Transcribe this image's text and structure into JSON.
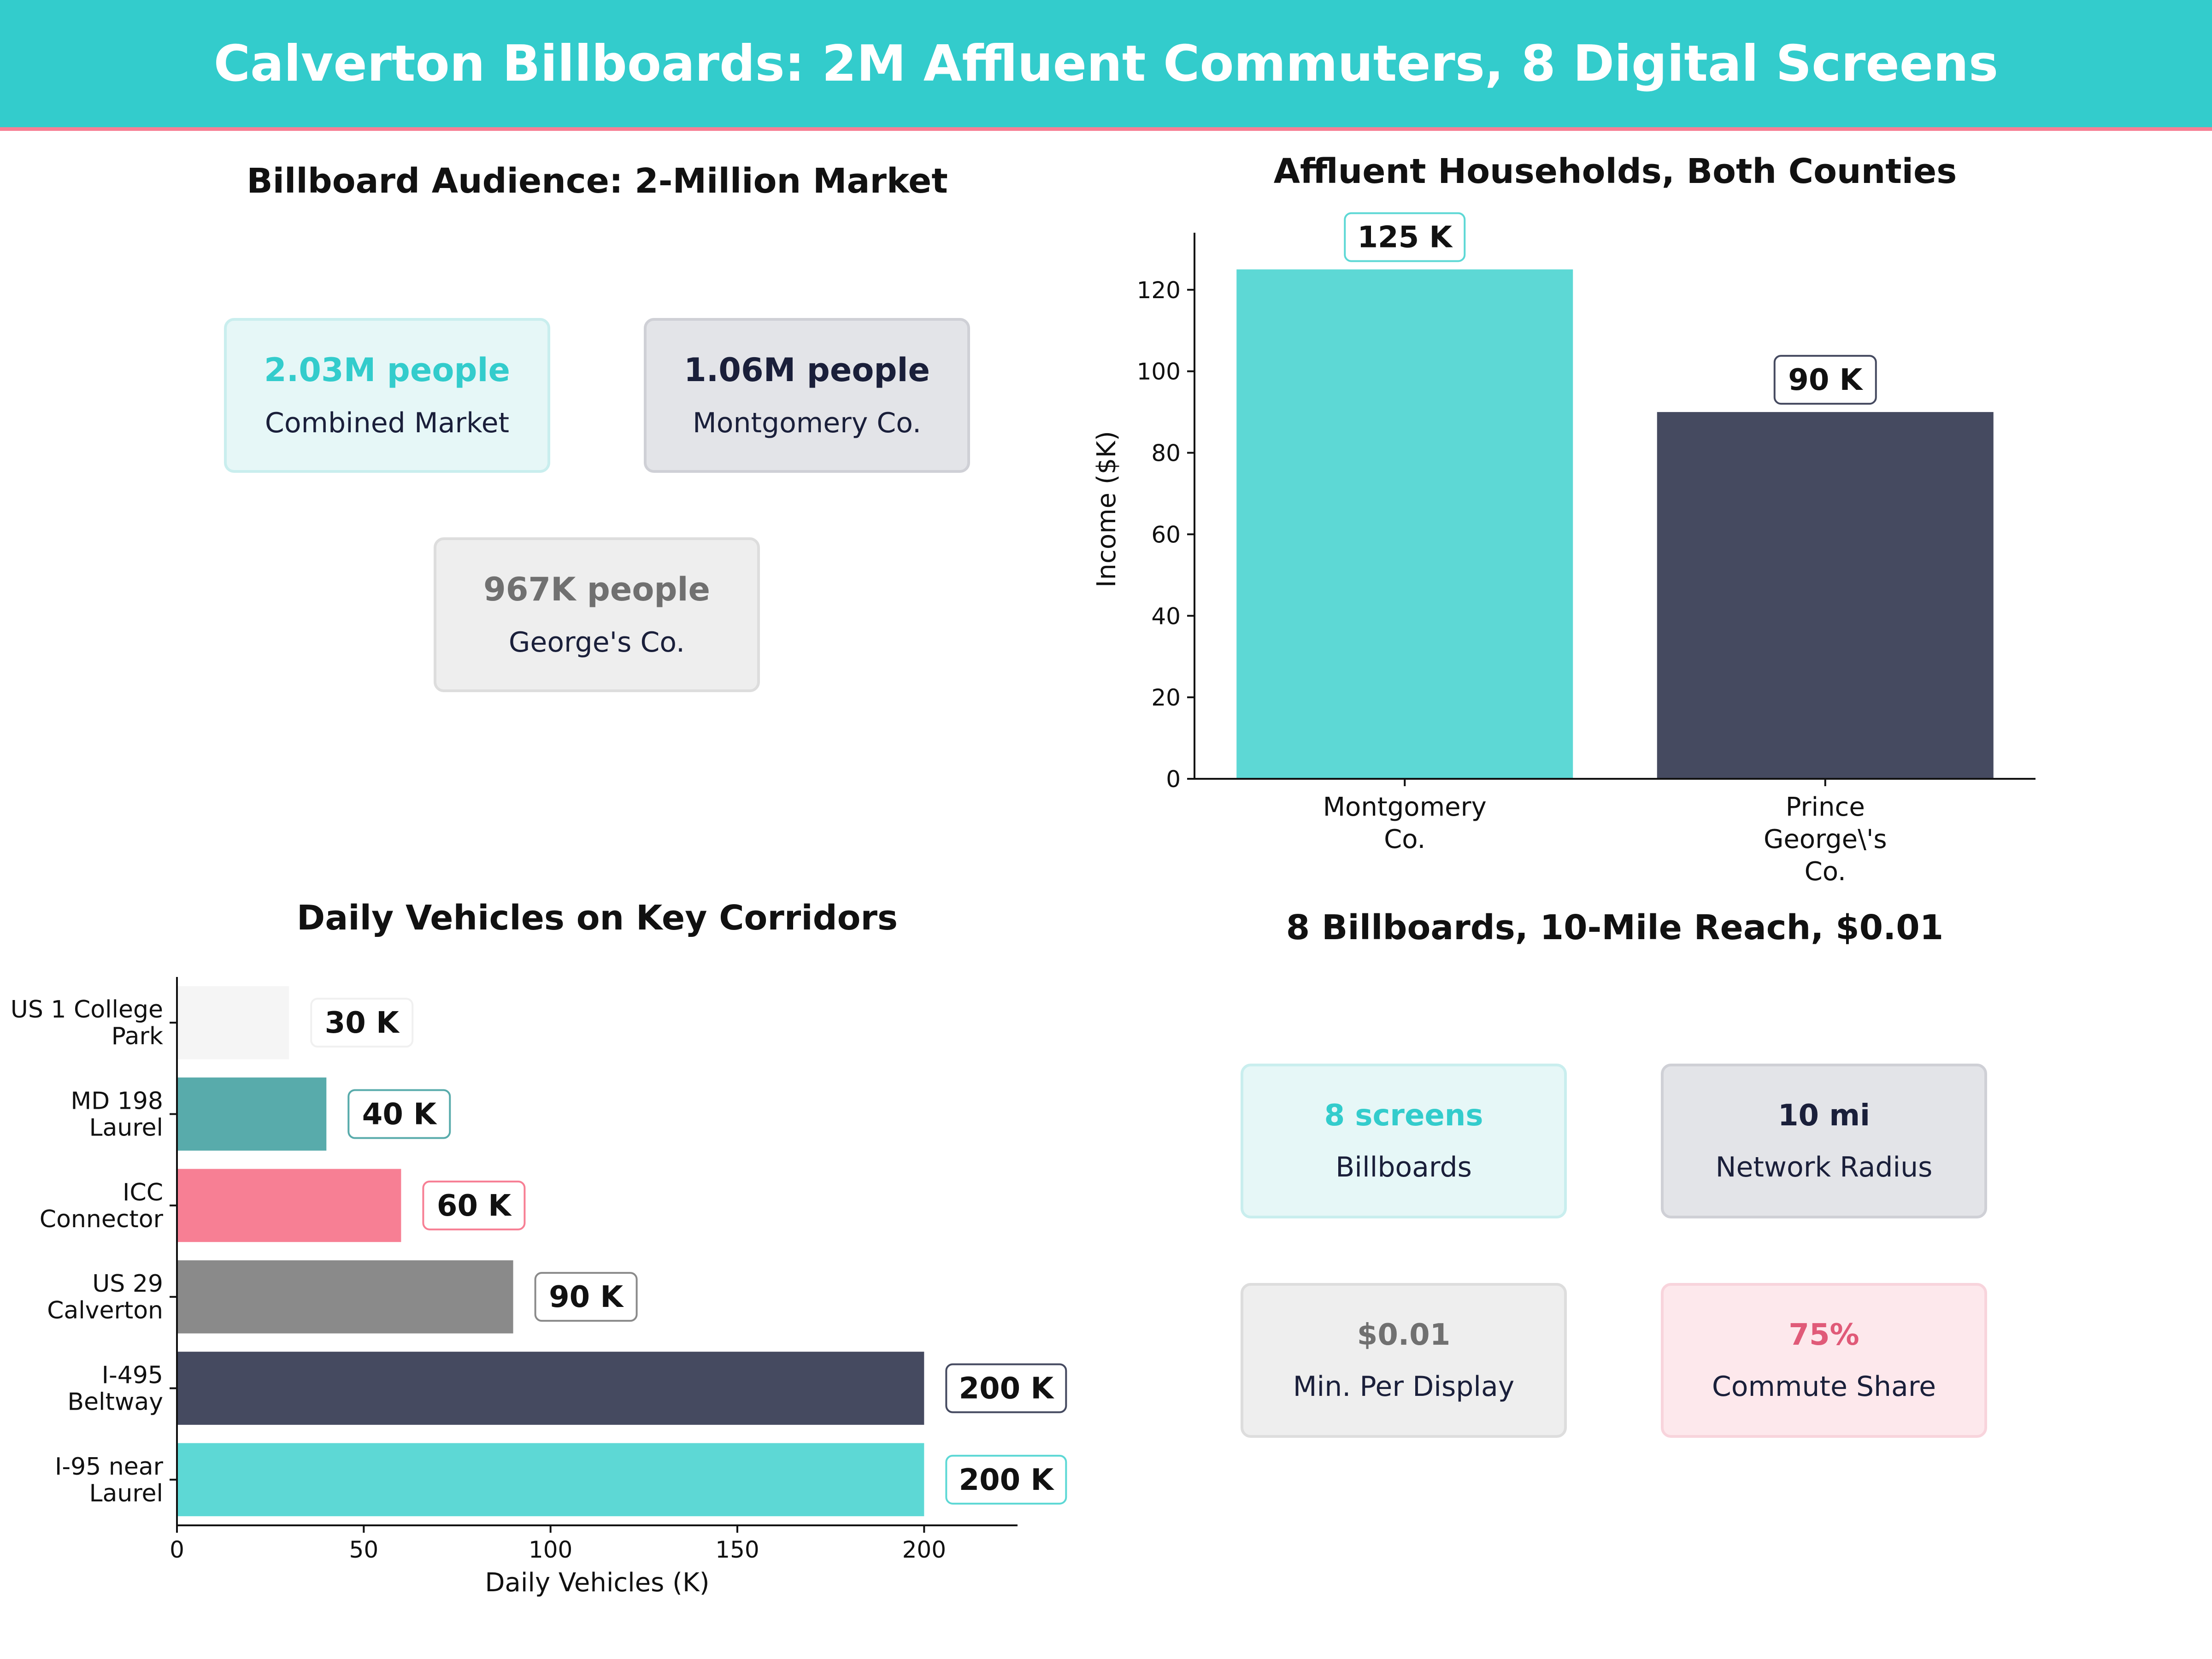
{
  "header": {
    "title": "Calverton Billboards: 2M Affluent Commuters, 8 Digital Screens"
  },
  "audience": {
    "title": "Billboard Audience: 2-Million Market",
    "cards": [
      {
        "value": "2.03M people",
        "label": "Combined Market",
        "value_color": "#33CCCC",
        "bg": "#E6F7F7",
        "border": "#C9EEEE"
      },
      {
        "value": "1.06M people",
        "label": "Montgomery Co.",
        "value_color": "#1A1F3A",
        "bg": "#E3E4E8",
        "border": "#CFD0D6"
      },
      {
        "value": "967K people",
        "label": "George's Co.",
        "value_color": "#707070",
        "bg": "#EEEEEE",
        "border": "#DDDDDD"
      }
    ]
  },
  "network": {
    "title": "8 Billboards, 10-Mile Reach, $0.01",
    "cards": [
      {
        "value": "8 screens",
        "label": "Billboards",
        "value_color": "#33CCCC",
        "bg": "#E6F7F7",
        "border": "#C9EEEE"
      },
      {
        "value": "10 mi",
        "label": "Network Radius",
        "value_color": "#1A1F3A",
        "bg": "#E3E4E8",
        "border": "#CFD0D6"
      },
      {
        "value": "$0.01",
        "label": "Min. Per Display",
        "value_color": "#707070",
        "bg": "#EEEEEE",
        "border": "#DDDDDD"
      },
      {
        "value": "75%",
        "label": "Commute Share",
        "value_color": "#E05A78",
        "bg": "#FDE8EC",
        "border": "#F8D4DC"
      }
    ]
  },
  "chart_data": [
    {
      "type": "bar",
      "title": "Affluent Households, Both Counties",
      "categories": [
        [
          "Montgomery",
          "Co."
        ],
        [
          "Prince",
          "George\\'s",
          "Co."
        ]
      ],
      "values": [
        125,
        90
      ],
      "data_labels": [
        "125 K",
        "90 K"
      ],
      "colors": [
        "#5DD8D5",
        "#454A60"
      ],
      "label_borders": [
        "#5DD8D5",
        "#454A60"
      ],
      "ylabel": "Income ($K)",
      "ylim": [
        0,
        134
      ],
      "yticks": [
        0,
        20,
        40,
        60,
        80,
        100,
        120
      ],
      "grid": false
    },
    {
      "type": "bar",
      "orientation": "horizontal",
      "title": "Daily Vehicles on Key Corridors",
      "categories": [
        [
          "US 1 College",
          "Park"
        ],
        [
          "MD 198",
          "Laurel"
        ],
        [
          "ICC",
          "Connector"
        ],
        [
          "US 29",
          "Calverton"
        ],
        [
          "I-495",
          "Beltway"
        ],
        [
          "I-95 near",
          "Laurel"
        ]
      ],
      "values": [
        30,
        40,
        60,
        90,
        200,
        200
      ],
      "data_labels": [
        "30 K",
        "40 K",
        "60 K",
        "90 K",
        "200 K",
        "200 K"
      ],
      "colors": [
        "#F5F5F5",
        "#58ABAB",
        "#F77F94",
        "#8A8A8A",
        "#454A60",
        "#5DD8D5"
      ],
      "label_borders": [
        "#F0F0F0",
        "#58ABAB",
        "#F77F94",
        "#8A8A8A",
        "#454A60",
        "#5DD8D5"
      ],
      "xlabel": "Daily Vehicles (K)",
      "xlim": [
        0,
        225
      ],
      "xticks": [
        0,
        50,
        100,
        150,
        200
      ],
      "grid": false
    }
  ]
}
